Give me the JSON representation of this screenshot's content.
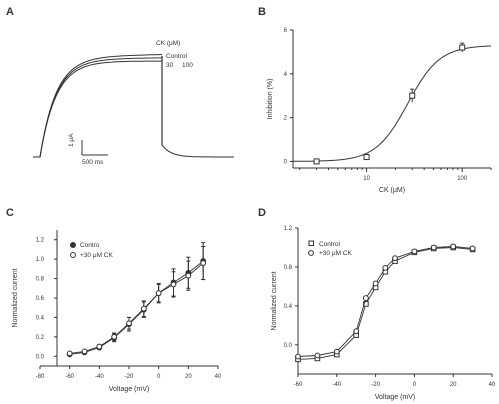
{
  "chart_data": [
    {
      "panel": "A",
      "type": "line",
      "legend_title": "CK (μM)",
      "series_names": [
        "Control",
        "30",
        "100"
      ],
      "scale_bar": {
        "current": "1 μA",
        "time": "500 ms"
      }
    },
    {
      "panel": "B",
      "type": "scatter",
      "xlabel": "CK (μM)",
      "ylabel": "Inhibition (%)",
      "xscale": "log",
      "xlim": [
        1.7,
        200
      ],
      "ylim": [
        -0.3,
        6
      ],
      "xticks": [
        10,
        100
      ],
      "yticks": [
        0,
        2,
        4,
        6
      ],
      "x": [
        3,
        10,
        30,
        100
      ],
      "y": [
        0.0,
        0.2,
        3.0,
        5.2
      ],
      "error": [
        0.1,
        0.1,
        0.3,
        0.2
      ],
      "fit": {
        "type": "hill",
        "top": 5.3,
        "ec50": 27,
        "n": 2.6
      }
    },
    {
      "panel": "C",
      "type": "line",
      "xlabel": "Voltage (mV)",
      "ylabel": "Normalized current",
      "xlim": [
        -80,
        40
      ],
      "ylim": [
        -0.1,
        1.3
      ],
      "xticks": [
        -80,
        -60,
        -40,
        -20,
        0,
        20,
        40
      ],
      "yticks": [
        "0.0",
        "0.2",
        "0.4",
        "0.6",
        "0.8",
        "1.0",
        "1.2"
      ],
      "legend": [
        "Contro",
        "+30 μM CK"
      ],
      "x": [
        -60,
        -50,
        -40,
        -30,
        -20,
        -10,
        0,
        10,
        20,
        30
      ],
      "series": [
        {
          "name": "Contro",
          "marker": "filled",
          "values": [
            0.02,
            0.04,
            0.09,
            0.19,
            0.33,
            0.48,
            0.65,
            0.76,
            0.86,
            0.98
          ],
          "error": [
            0.01,
            0.01,
            0.02,
            0.04,
            0.07,
            0.08,
            0.1,
            0.14,
            0.16,
            0.19
          ]
        },
        {
          "name": "+30 μM CK",
          "marker": "open",
          "values": [
            0.03,
            0.05,
            0.1,
            0.2,
            0.34,
            0.49,
            0.65,
            0.74,
            0.83,
            0.96
          ],
          "error": [
            0.01,
            0.01,
            0.02,
            0.04,
            0.06,
            0.08,
            0.09,
            0.13,
            0.15,
            0.17
          ]
        }
      ]
    },
    {
      "panel": "D",
      "type": "line",
      "xlabel": "Voltage (mV)",
      "ylabel": "Normalized current",
      "xlim": [
        -60,
        40
      ],
      "ylim": [
        -0.3,
        1.2
      ],
      "xticks": [
        -60,
        -40,
        -20,
        0,
        20,
        40
      ],
      "yticks": [
        "0.0",
        "0.4",
        "0.8",
        "1.2"
      ],
      "legend": [
        "Control",
        "+30 μM CK"
      ],
      "x": [
        -60,
        -50,
        -40,
        -30,
        -25,
        -20,
        -15,
        -10,
        0,
        10,
        20,
        30
      ],
      "series": [
        {
          "name": "Control",
          "marker": "open-square",
          "values": [
            -0.15,
            -0.14,
            -0.1,
            0.1,
            0.42,
            0.59,
            0.75,
            0.86,
            0.95,
            0.99,
            1.0,
            0.98
          ]
        },
        {
          "name": "+30 μM CK",
          "marker": "open-circle",
          "values": [
            -0.12,
            -0.11,
            -0.07,
            0.14,
            0.48,
            0.63,
            0.79,
            0.89,
            0.96,
            1.0,
            1.01,
            0.99
          ]
        }
      ]
    }
  ]
}
